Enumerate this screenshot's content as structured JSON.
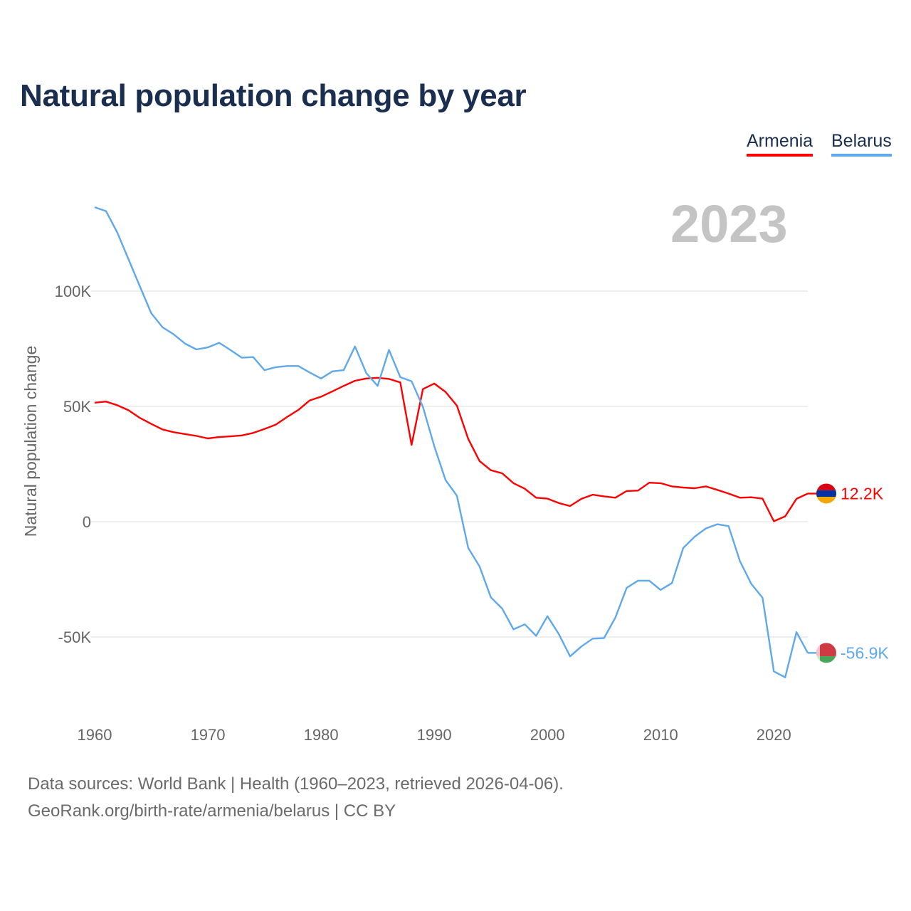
{
  "chart_data": {
    "type": "line",
    "title": "Natural population change by year",
    "ylabel": "Natural population change",
    "xlabel": "",
    "current_year_label": "2023",
    "xlim": [
      1960,
      2023
    ],
    "ylim": [
      -75000,
      140000
    ],
    "x_ticks": [
      1960,
      1970,
      1980,
      1990,
      2000,
      2010,
      2020
    ],
    "x_tick_labels": [
      "1960",
      "1970",
      "1980",
      "1990",
      "2000",
      "2010",
      "2020"
    ],
    "y_ticks": [
      100000,
      50000,
      0,
      -50000
    ],
    "y_tick_labels": [
      "100K",
      "50K",
      "0",
      "-50K"
    ],
    "grid": true,
    "legend_position": "top-right",
    "x": [
      1960,
      1961,
      1962,
      1963,
      1964,
      1965,
      1966,
      1967,
      1968,
      1969,
      1970,
      1971,
      1972,
      1973,
      1974,
      1975,
      1976,
      1977,
      1978,
      1979,
      1980,
      1981,
      1982,
      1983,
      1984,
      1985,
      1986,
      1987,
      1988,
      1989,
      1990,
      1991,
      1992,
      1993,
      1994,
      1995,
      1996,
      1997,
      1998,
      1999,
      2000,
      2001,
      2002,
      2003,
      2004,
      2005,
      2006,
      2007,
      2008,
      2009,
      2010,
      2011,
      2012,
      2013,
      2014,
      2015,
      2016,
      2017,
      2018,
      2019,
      2020,
      2021,
      2022,
      2023
    ],
    "series": [
      {
        "name": "Armenia",
        "color": "#ff0000",
        "end_label": "12.2K",
        "values": [
          51600,
          52100,
          50500,
          48300,
          45000,
          42400,
          40000,
          38800,
          38000,
          37200,
          36100,
          36700,
          37000,
          37400,
          38500,
          40200,
          42100,
          45400,
          48500,
          52600,
          54200,
          56500,
          58900,
          61100,
          62100,
          62400,
          61900,
          60400,
          33300,
          57500,
          59900,
          56300,
          50300,
          35900,
          26300,
          22300,
          21000,
          16700,
          14300,
          10400,
          10000,
          8100,
          6800,
          9900,
          11700,
          11000,
          10400,
          13300,
          13500,
          16900,
          16700,
          15300,
          14800,
          14500,
          15300,
          13800,
          12200,
          10400,
          10600,
          10000,
          200,
          2300,
          9900,
          12200
        ]
      },
      {
        "name": "Belarus",
        "color": "#5fa8ea",
        "end_label": "-56.9K",
        "values": [
          136400,
          134700,
          125400,
          113700,
          102000,
          90400,
          84300,
          81200,
          77200,
          74700,
          75600,
          77600,
          74400,
          71100,
          71400,
          65700,
          67000,
          67500,
          67500,
          64700,
          62100,
          65200,
          65700,
          76000,
          64400,
          58900,
          74500,
          62700,
          60900,
          49800,
          32800,
          18100,
          11200,
          -11400,
          -19400,
          -32800,
          -37700,
          -46700,
          -44500,
          -49500,
          -41000,
          -48700,
          -58400,
          -54100,
          -50700,
          -50500,
          -41600,
          -28700,
          -25600,
          -25600,
          -29600,
          -26600,
          -11400,
          -6500,
          -2900,
          -1100,
          -1900,
          -17100,
          -26900,
          -33000,
          -64900,
          -67500,
          -47900,
          -56900
        ]
      }
    ]
  },
  "footer": {
    "sources": "Data sources: World Bank | Health (1960–2023, retrieved 2026-04-06).",
    "attribution": "GeoRank.org/birth-rate/armenia/belarus | CC BY"
  }
}
